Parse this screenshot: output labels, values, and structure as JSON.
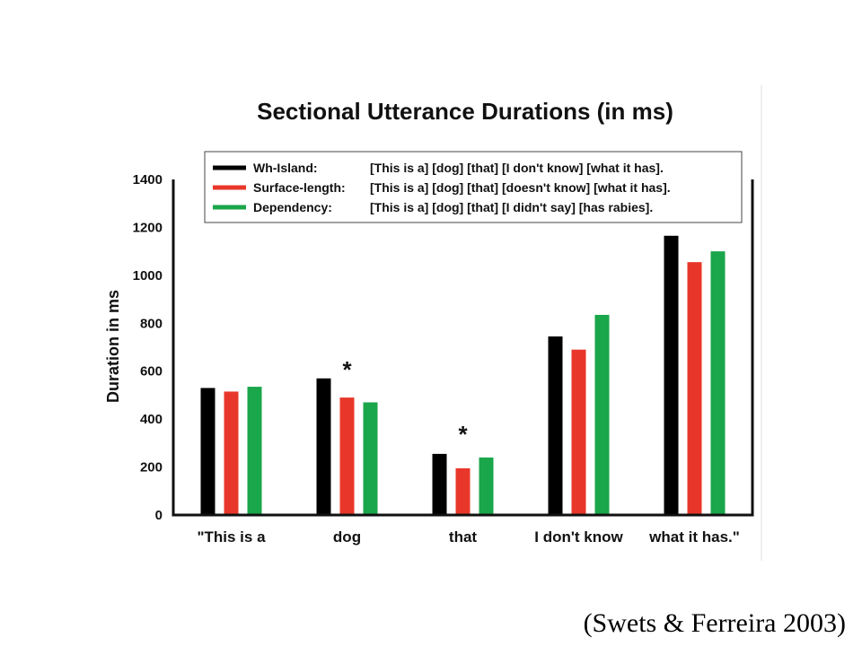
{
  "chart_data": {
    "type": "bar",
    "title": "Sectional Utterance Durations (in ms)",
    "ylabel": "Duration in ms",
    "xlabel": "",
    "ylim": [
      0,
      1400
    ],
    "yticks": [
      0,
      200,
      400,
      600,
      800,
      1000,
      1200,
      1400
    ],
    "grid": false,
    "legend_position": "top",
    "categories": [
      "\"This is a",
      "dog",
      "that",
      "I don't know",
      "what it has.\""
    ],
    "series": [
      {
        "name": "Wh-Island:",
        "description": "[This is a] [dog] [that] [I don't know] [what it has].",
        "color": "#000000",
        "values": [
          530,
          570,
          255,
          745,
          1165
        ]
      },
      {
        "name": "Surface-length:",
        "description": "[This is a] [dog] [that] [doesn't know] [what it has].",
        "color": "#e8372a",
        "values": [
          515,
          490,
          195,
          690,
          1055
        ]
      },
      {
        "name": "Dependency:",
        "description": "[This is a] [dog] [that] [I didn't say] [has rabies].",
        "color": "#1aa64a",
        "values": [
          535,
          470,
          240,
          835,
          1100
        ]
      }
    ],
    "annotations": [
      {
        "text": "*",
        "category": "dog",
        "value": 640
      },
      {
        "text": "*",
        "category": "that",
        "value": 370
      }
    ]
  },
  "citation": "(Swets & Ferreira 2003)"
}
